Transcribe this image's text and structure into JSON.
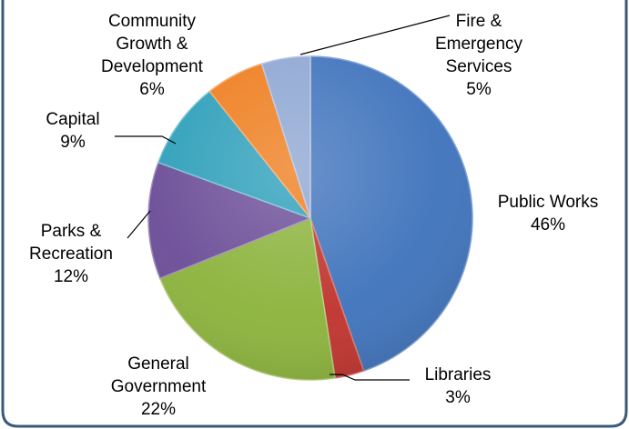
{
  "chart_data": {
    "type": "pie",
    "title": "",
    "series": [
      {
        "values": [
          46,
          3,
          22,
          12,
          9,
          6,
          5
        ],
        "slices": [
          {
            "label_lines": [
              "Public Works",
              "46%"
            ],
            "value": 46,
            "color": "#3F73BC"
          },
          {
            "label_lines": [
              "Libraries",
              "3%"
            ],
            "value": 3,
            "color": "#C0332E"
          },
          {
            "label_lines": [
              "General",
              "Government",
              "22%"
            ],
            "value": 22,
            "color": "#8CB33C"
          },
          {
            "label_lines": [
              "Parks &",
              "Recreation",
              "12%"
            ],
            "value": 12,
            "color": "#6B4D97"
          },
          {
            "label_lines": [
              "Capital",
              "9%"
            ],
            "value": 9,
            "color": "#2D9FBA"
          },
          {
            "label_lines": [
              "Community",
              "Growth &",
              "Development",
              "6%"
            ],
            "value": 6,
            "color": "#EE7D1E"
          },
          {
            "label_lines": [
              "Fire &",
              "Emergency",
              "Services",
              "5%"
            ],
            "value": 5,
            "color": "#8EA6D2"
          }
        ]
      }
    ],
    "style": "3d-pie",
    "frame_color": "#3A5A7A"
  }
}
